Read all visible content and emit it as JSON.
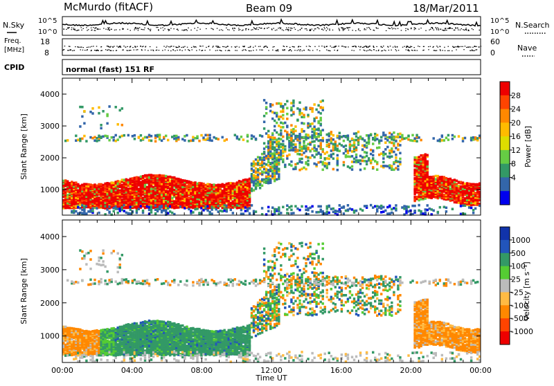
{
  "header": {
    "site": "McMurdo (fitACF)",
    "beam": "Beam 09",
    "date": "18/Mar/2011"
  },
  "status_panels": {
    "nsky_label": "N.Sky",
    "nsearch_label": "N.Search",
    "noise_ticks": [
      "10^5",
      "10^0"
    ],
    "freq_label_line1": "Freq.",
    "freq_label_line2": "[MHz]",
    "freq_ticks": [
      "18",
      "8"
    ],
    "nave_label": "Nave",
    "nave_ticks": [
      "60",
      "0"
    ],
    "cpid_label": "CPID",
    "cpid_text": "normal (fast) 151 RF"
  },
  "chart_data": [
    {
      "type": "heatmap",
      "name": "power",
      "ylabel": "Slant Range [km]",
      "xlabel": "",
      "yticks": [
        "4000",
        "3000",
        "2000",
        "1000"
      ],
      "ylim": [
        200,
        4500
      ],
      "xlim": [
        0,
        24
      ],
      "colorbar": {
        "label": "Power [dB]",
        "ticks": [
          "28",
          "24",
          "20",
          "16",
          "12",
          "8",
          "4"
        ],
        "colors": [
          "#ee0000",
          "#ff4400",
          "#ff8800",
          "#ffbb00",
          "#dddd00",
          "#66cc44",
          "#339966",
          "#3366aa",
          "#0000ee"
        ]
      }
    },
    {
      "type": "heatmap",
      "name": "velocity",
      "ylabel": "Slant Range [km]",
      "xlabel": "Time UT",
      "yticks": [
        "4000",
        "3000",
        "2000",
        "1000"
      ],
      "xticks": [
        "00:00",
        "04:00",
        "08:00",
        "12:00",
        "16:00",
        "20:00",
        "00:00"
      ],
      "ylim": [
        200,
        4500
      ],
      "xlim": [
        0,
        24
      ],
      "colorbar": {
        "label": "Velocity [m s⁻¹]",
        "ticks": [
          "1000",
          "500",
          "100",
          "25",
          "-25",
          "-100",
          "-500",
          "-1000"
        ],
        "colors": [
          "#1133aa",
          "#2255bb",
          "#339966",
          "#55cc33",
          "#bbbbbb",
          "#ffbb44",
          "#ff8800",
          "#ff4400",
          "#ee0000"
        ]
      }
    }
  ]
}
